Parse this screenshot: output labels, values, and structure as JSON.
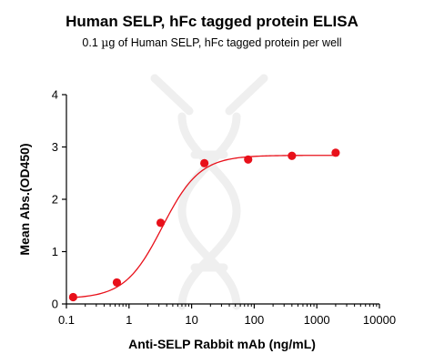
{
  "chart_data": {
    "type": "scatter",
    "title": "Human SELP, hFc tagged protein ELISA",
    "subtitle_prefix": "0.1 ",
    "subtitle_unit": "µ",
    "subtitle_suffix": "g of Human SELP, hFc tagged protein per well",
    "xlabel": "Anti-SELP Rabbit mAb (ng/mL)",
    "ylabel": "Mean Abs.(OD450)",
    "x_scale": "log",
    "xlim": [
      0.1,
      10000
    ],
    "ylim": [
      0,
      4
    ],
    "x_ticks": [
      0.1,
      1,
      10,
      100,
      1000,
      10000
    ],
    "x_tick_labels": [
      "0.1",
      "1",
      "10",
      "100",
      "1000",
      "10000"
    ],
    "y_ticks": [
      0,
      1,
      2,
      3,
      4
    ],
    "y_tick_labels": [
      "0",
      "1",
      "2",
      "3",
      "4"
    ],
    "grid": false,
    "series": [
      {
        "x": [
          0.128,
          0.64,
          3.2,
          16,
          80,
          400,
          2000
        ],
        "y": [
          0.13,
          0.41,
          1.55,
          2.69,
          2.76,
          2.83,
          2.89
        ],
        "marker_color": "#e8101a",
        "fit_curve": true,
        "fit": {
          "bottom": 0.1,
          "top": 2.84,
          "ec50": 3.4,
          "hill": 1.45
        }
      }
    ]
  },
  "colors": {
    "data": "#e8101a",
    "axis": "#000000",
    "watermark": "#efefef"
  }
}
